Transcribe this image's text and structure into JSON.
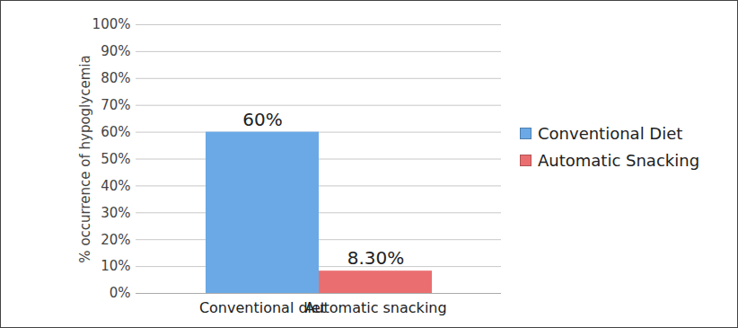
{
  "chart_data": {
    "type": "bar",
    "categories": [
      "Conventional diet",
      "Automatic snacking"
    ],
    "y_label": "% occurrence of hypoglycemia",
    "series": [
      {
        "name": "Conventional Diet",
        "color": "#6aa9e6",
        "values": [
          60,
          null
        ],
        "value_labels": [
          "60%",
          null
        ]
      },
      {
        "name": "Automatic Snacking",
        "color": "#ea6e70",
        "values": [
          null,
          8.3
        ],
        "value_labels": [
          null,
          "8.30%"
        ]
      }
    ],
    "ylim": [
      0,
      100
    ],
    "yticks": [
      {
        "value": 0,
        "label": "0%"
      },
      {
        "value": 10,
        "label": "10%"
      },
      {
        "value": 20,
        "label": "20%"
      },
      {
        "value": 30,
        "label": "30%"
      },
      {
        "value": 40,
        "label": "40%"
      },
      {
        "value": 50,
        "label": "50%"
      },
      {
        "value": 60,
        "label": "60%"
      },
      {
        "value": 70,
        "label": "70%"
      },
      {
        "value": 80,
        "label": "80%"
      },
      {
        "value": 90,
        "label": "90%"
      },
      {
        "value": 100,
        "label": "100%"
      }
    ],
    "grid": true,
    "data_labels": true,
    "legend": "right"
  }
}
